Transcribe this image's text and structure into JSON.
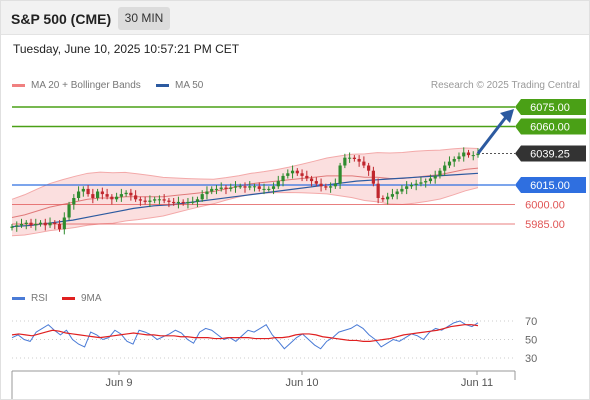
{
  "header": {
    "instrument": "S&P 500 (CME)",
    "timeframe": "30 MIN"
  },
  "timestamp": "Tuesday, June 10, 2025 10:57:21 PM CET",
  "legend": {
    "bb": {
      "label": "MA 20 + Bollinger Bands",
      "color": "#f08080"
    },
    "ma50": {
      "label": "MA 50",
      "color": "#2c5aa0"
    }
  },
  "credit": "Research © 2025 Trading Central",
  "rsi_legend": {
    "rsi": {
      "label": "RSI",
      "color": "#4a7bd6"
    },
    "ma": {
      "label": "9MA",
      "color": "#e02020"
    }
  },
  "colors": {
    "up": "#2e8b2e",
    "down": "#c0262d",
    "resistance": "#4aa016",
    "pivot": "#2f6fe0",
    "support": "#e05555",
    "last": "#333333",
    "arrow": "#2c5aa0"
  },
  "chart_data": [
    {
      "type": "candlestick",
      "title": "S&P 500 (CME)",
      "x_tick_labels": [
        "Jun 9",
        "Jun 10",
        "Jun 11"
      ],
      "y_range": [
        5960,
        6090
      ],
      "price_levels": [
        {
          "label": "6075.00",
          "value": 6075,
          "kind": "resistance"
        },
        {
          "label": "6060.00",
          "value": 6060,
          "kind": "resistance"
        },
        {
          "label": "6039.25",
          "value": 6039.25,
          "kind": "last"
        },
        {
          "label": "6015.00",
          "value": 6015,
          "kind": "pivot"
        },
        {
          "label": "6000.00",
          "value": 6000,
          "kind": "support"
        },
        {
          "label": "5985.00",
          "value": 5985,
          "kind": "support"
        }
      ],
      "close": [
        5983,
        5984,
        5985,
        5986,
        5984,
        5985,
        5986,
        5984,
        5986,
        5985,
        5981,
        5990,
        6000,
        6005,
        6010,
        6012,
        6008,
        6005,
        6010,
        6008,
        6006,
        6004,
        6006,
        6008,
        6009,
        6007,
        6004,
        6003,
        6002,
        6003,
        6004,
        6004,
        6003,
        6002,
        6001,
        6002,
        6001,
        6002,
        6002,
        6004,
        6008,
        6010,
        6012,
        6012,
        6013,
        6012,
        6013,
        6014,
        6014,
        6013,
        6014,
        6014,
        6012,
        6012,
        6012,
        6014,
        6018,
        6022,
        6024,
        6026,
        6024,
        6022,
        6020,
        6018,
        6016,
        6014,
        6013,
        6014,
        6016,
        6030,
        6036,
        6036,
        6035,
        6033,
        6030,
        6026,
        6016,
        6005,
        6004,
        6006,
        6008,
        6010,
        6012,
        6014,
        6015,
        6016,
        6017,
        6018,
        6020,
        6022,
        6026,
        6030,
        6033,
        6035,
        6037,
        6040,
        6038,
        6038,
        6039.25
      ],
      "ma20_estimate": [
        5990,
        5992,
        5995,
        5998,
        6000,
        6002,
        6004,
        6005,
        6005,
        6006,
        6006,
        6006,
        6006,
        6007,
        6008,
        6009,
        6010,
        6012,
        6014,
        6016,
        6017,
        6018,
        6019,
        6020,
        6021,
        6022,
        6022,
        6022,
        6021,
        6021,
        6020,
        6020,
        6021,
        6022,
        6023,
        6025,
        6027,
        6028
      ],
      "ma50_estimate": [
        5983,
        5984,
        5986,
        5988,
        5991,
        5994,
        5997,
        5999,
        6000,
        6002,
        6004,
        6006,
        6008,
        6010,
        6012,
        6014,
        6016,
        6018,
        6019,
        6020,
        6021,
        6022,
        6023,
        6024
      ],
      "arrow_target": 6075
    },
    {
      "type": "line",
      "title": "RSI",
      "y_tick_labels": [
        "70",
        "50",
        "30"
      ],
      "y_range": [
        20,
        80
      ],
      "series": [
        {
          "name": "RSI",
          "values": [
            52,
            55,
            50,
            48,
            58,
            62,
            66,
            60,
            55,
            60,
            50,
            45,
            42,
            58,
            55,
            50,
            52,
            60,
            56,
            48,
            45,
            60,
            58,
            55,
            50,
            53,
            56,
            60,
            57,
            50,
            46,
            58,
            62,
            60,
            55,
            50,
            52,
            48,
            54,
            60,
            58,
            62,
            66,
            55,
            48,
            40,
            46,
            52,
            56,
            50,
            44,
            40,
            48,
            52,
            58,
            60,
            62,
            66,
            62,
            55,
            50,
            42,
            46,
            50,
            48,
            52,
            56,
            54,
            50,
            58,
            62,
            60,
            64,
            68,
            70,
            66,
            64,
            68
          ]
        },
        {
          "name": "9MA",
          "values": [
            55,
            56,
            55,
            54,
            56,
            58,
            60,
            59,
            57,
            56,
            55,
            54,
            53,
            52,
            53,
            54,
            55,
            56,
            57,
            56,
            55,
            55,
            54,
            54,
            54,
            53,
            53,
            52,
            52,
            52,
            51,
            51,
            52,
            52,
            52,
            52,
            51,
            51,
            51,
            52,
            52,
            53,
            55,
            56,
            56,
            55,
            53,
            52,
            51,
            50,
            49,
            49,
            48,
            48,
            49,
            50,
            51,
            53,
            55,
            56,
            57,
            58,
            59,
            60,
            62,
            64,
            65,
            66,
            66,
            65
          ]
        }
      ]
    }
  ]
}
